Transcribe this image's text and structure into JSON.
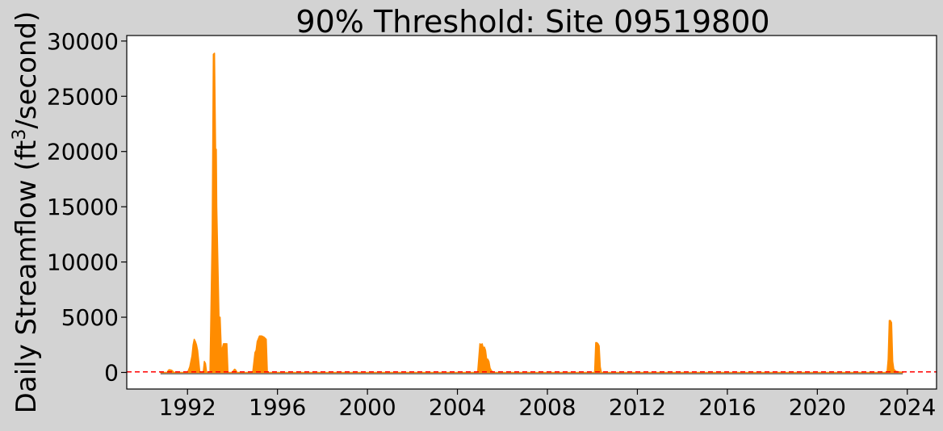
{
  "chart_data": {
    "type": "area",
    "title": "90% Threshold: Site 09519800",
    "ylabel_prefix": "Daily Streamflow (ft",
    "ylabel_sup": "3",
    "ylabel_suffix": "/second)",
    "xlabel": "",
    "xlim": [
      1989.3,
      2025.3
    ],
    "ylim": [
      -1500,
      30500
    ],
    "x_ticks": [
      "1992",
      "1996",
      "2000",
      "2004",
      "2008",
      "2012",
      "2016",
      "2020",
      "2024"
    ],
    "y_ticks": [
      "0",
      "5000",
      "10000",
      "15000",
      "20000",
      "25000",
      "30000"
    ],
    "threshold": 50,
    "baseline_span": [
      1990.8,
      2023.8
    ],
    "grid": false,
    "colors": {
      "fill": "#ff8c00",
      "baseline": "#808080",
      "threshold": "#ff0000",
      "background": "#d3d3d3",
      "plot_background": "#ffffff"
    },
    "series": [
      {
        "x": [
          1990.8,
          1991.1,
          1991.15,
          1991.2,
          1991.3,
          1991.4,
          1992.0,
          1992.1,
          1992.2,
          1992.25,
          1992.3,
          1992.35,
          1992.4,
          1992.45,
          1992.5,
          1992.55,
          1992.7,
          1992.75,
          1992.8,
          1992.85,
          1993.0,
          1993.1,
          1993.15,
          1993.2,
          1993.25,
          1993.28,
          1993.3,
          1993.35,
          1993.4,
          1993.45,
          1993.5,
          1993.55,
          1993.6,
          1993.65,
          1993.7,
          1993.75,
          1993.8,
          1994.0,
          1994.05,
          1994.1,
          1994.15,
          1994.2,
          1994.5,
          1994.9,
          1995.0,
          1995.05,
          1995.1,
          1995.2,
          1995.3,
          1995.4,
          1995.5,
          1995.55,
          1995.6,
          1995.8,
          2004.9,
          2005.0,
          2005.05,
          2005.1,
          2005.15,
          2005.2,
          2005.25,
          2005.3,
          2005.35,
          2005.4,
          2005.45,
          2005.5,
          2005.55,
          2005.6,
          2005.7,
          2010.1,
          2010.15,
          2010.2,
          2010.25,
          2010.3,
          2010.35,
          2010.4,
          2023.1,
          2023.15,
          2023.2,
          2023.25,
          2023.3,
          2023.35,
          2023.4,
          2023.5,
          2023.8
        ],
        "values": [
          0,
          0,
          200,
          250,
          200,
          0,
          0,
          500,
          1500,
          2500,
          3000,
          2800,
          2500,
          2000,
          1000,
          0,
          0,
          1000,
          800,
          0,
          0,
          12700,
          28800,
          28900,
          20000,
          20200,
          15000,
          10000,
          5000,
          5000,
          2200,
          2200,
          2600,
          2600,
          2600,
          2600,
          0,
          0,
          200,
          300,
          200,
          0,
          0,
          0,
          1800,
          2000,
          2800,
          3300,
          3300,
          3200,
          3000,
          0,
          0,
          0,
          0,
          2600,
          2500,
          2600,
          2200,
          2300,
          2000,
          1200,
          1200,
          1000,
          400,
          200,
          100,
          0,
          0,
          0,
          2700,
          2700,
          2600,
          2400,
          500,
          0,
          0,
          1200,
          4700,
          4700,
          4500,
          1000,
          300,
          100,
          0
        ]
      }
    ]
  }
}
